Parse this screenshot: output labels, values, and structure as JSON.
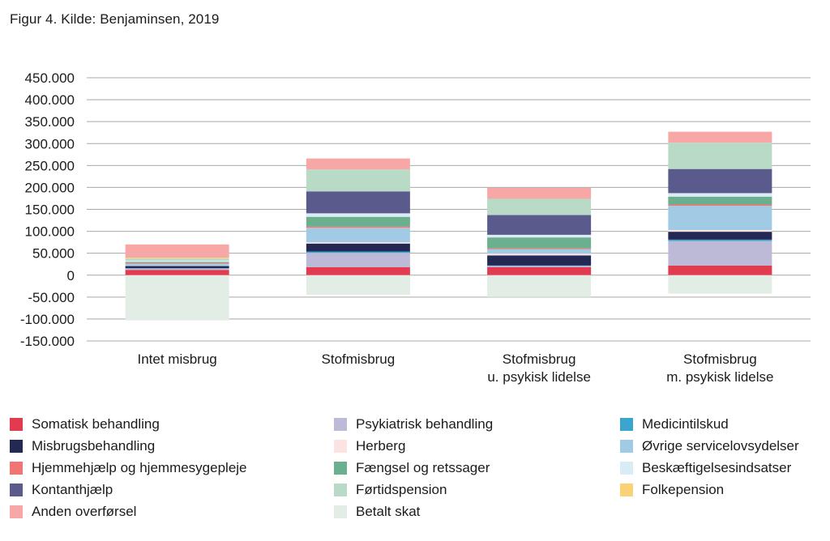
{
  "caption": "Figur 4. Kilde: Benjaminsen, 2019",
  "chart_data": {
    "type": "bar",
    "stacked": true,
    "title": "",
    "xlabel": "",
    "ylabel": "",
    "ylim": [
      -150000,
      450000
    ],
    "yticks": [
      450000,
      400000,
      350000,
      300000,
      250000,
      200000,
      150000,
      100000,
      50000,
      0,
      -50000,
      -100000,
      -150000
    ],
    "ytick_labels": [
      "450.000",
      "400.000",
      "350.000",
      "300.000",
      "250.000",
      "200.000",
      "150.000",
      "100.000",
      "50.000",
      "0",
      "-50.000",
      "-100.000",
      "-150.000"
    ],
    "grid": true,
    "legend_position": "bottom",
    "categories": [
      [
        "Intet misbrug"
      ],
      [
        "Stofmisbrug"
      ],
      [
        "Stofmisbrug",
        "u. psykisk lidelse"
      ],
      [
        "Stofmisbrug",
        "m. psykisk lidelse"
      ]
    ],
    "series": [
      {
        "name": "Somatisk behandling",
        "color": "#e23a4f",
        "values": [
          12000,
          18000,
          18000,
          22000
        ]
      },
      {
        "name": "Psykiatrisk behandling",
        "color": "#bcbad6",
        "values": [
          3000,
          33000,
          3000,
          56000
        ]
      },
      {
        "name": "Medicintilskud",
        "color": "#3aa5cf",
        "values": [
          1000,
          3000,
          1000,
          3000
        ]
      },
      {
        "name": "Misbrugsbehandling",
        "color": "#232855",
        "values": [
          5000,
          18000,
          23000,
          18000
        ]
      },
      {
        "name": "Herberg",
        "color": "#fbe3e1",
        "values": [
          1000,
          3000,
          4000,
          4000
        ]
      },
      {
        "name": "Øvrige servicelovsydelser",
        "color": "#a1cbe4",
        "values": [
          4000,
          33000,
          10000,
          55000
        ]
      },
      {
        "name": "Hjemmehjælp og hjemmesygepleje",
        "color": "#f07575",
        "values": [
          2000,
          3000,
          2000,
          3000
        ]
      },
      {
        "name": "Fængsel og retssager",
        "color": "#6aaf8e",
        "values": [
          2000,
          22000,
          25000,
          18000
        ]
      },
      {
        "name": "Beskæftigelsesindsatser",
        "color": "#d9ecf6",
        "values": [
          3000,
          8000,
          6000,
          8000
        ]
      },
      {
        "name": "Kontanthjælp",
        "color": "#5a5a8c",
        "values": [
          0,
          50000,
          45000,
          55000
        ]
      },
      {
        "name": "Førtidspension",
        "color": "#b8dac7",
        "values": [
          5000,
          50000,
          37000,
          60000
        ]
      },
      {
        "name": "Folkepension",
        "color": "#fbd175",
        "values": [
          2000,
          0,
          0,
          0
        ]
      },
      {
        "name": "Anden overførsel",
        "color": "#f7a8a6",
        "values": [
          30000,
          25000,
          25000,
          25000
        ]
      },
      {
        "name": "Betalt skat",
        "color": "#e1ede5",
        "values": [
          -103000,
          -45000,
          -50000,
          -42000
        ]
      }
    ]
  },
  "legend_layout": [
    [
      "Somatisk behandling",
      "Misbrugsbehandling",
      "Hjemmehjælp og hjemmesygepleje",
      "Kontanthjælp",
      "Anden overførsel"
    ],
    [
      "Psykiatrisk behandling",
      "Herberg",
      "Fængsel og retssager",
      "Førtidspension",
      "Betalt skat"
    ],
    [
      "Medicintilskud",
      "Øvrige servicelovsydelser",
      "Beskæftigelsesindsatser",
      "Folkepension"
    ]
  ]
}
